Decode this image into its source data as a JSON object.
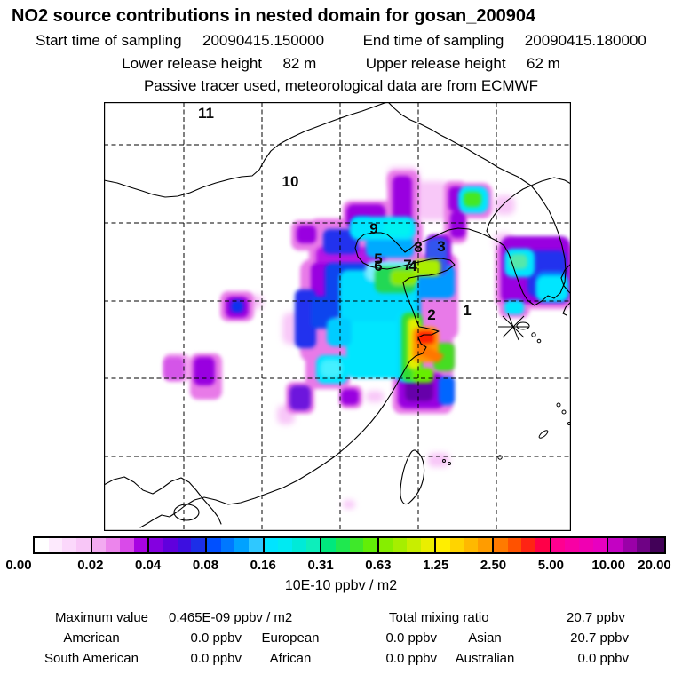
{
  "header": {
    "title": "NO2 source contributions in nested domain for gosan_200904",
    "start_label": "Start time of sampling",
    "start_value": "20090415.150000",
    "end_label": "End time of sampling",
    "end_value": "20090415.180000",
    "lower_label": "Lower release height",
    "lower_value": "82 m",
    "upper_label": "Upper release height",
    "upper_value": "62 m",
    "tracer_note": "Passive tracer used, meteorological data are from ECMWF"
  },
  "map": {
    "sites": [
      {
        "label": "1"
      },
      {
        "label": "2"
      },
      {
        "label": "3"
      },
      {
        "label": "4"
      },
      {
        "label": "5"
      },
      {
        "label": "6"
      },
      {
        "label": "7"
      },
      {
        "label": "8"
      },
      {
        "label": "9"
      },
      {
        "label": "10"
      },
      {
        "label": "11"
      }
    ],
    "marker_icon": "asterisk-star at receptor location"
  },
  "colorbar": {
    "ticks": [
      "0.00",
      "0.02",
      "0.04",
      "0.08",
      "0.16",
      "0.31",
      "0.63",
      "1.25",
      "2.50",
      "5.00",
      "10.00",
      "20.00"
    ],
    "unit": "10E-10 ppbv / m2",
    "segments": [
      [
        "#ffffff",
        "#fdeafd",
        "#fbd8fb",
        "#f8c6f7"
      ],
      [
        "#f3abf1",
        "#ec85ec",
        "#d94ae9",
        "#a703e2"
      ],
      [
        "#8400e0",
        "#6000dd",
        "#3d0fe0",
        "#1c2fe8"
      ],
      [
        "#0050ff",
        "#0078ff",
        "#00a2ff",
        "#2fc8ff"
      ],
      [
        "#00e4ff",
        "#00eaf2",
        "#00ead8",
        "#0deebb"
      ],
      [
        "#00e87d",
        "#1fe84f",
        "#3fe82a",
        "#62ee08"
      ],
      [
        "#86ee00",
        "#a6ee00",
        "#c8ee00",
        "#eaee00"
      ],
      [
        "#ffee00",
        "#ffd400",
        "#ffb900",
        "#ff9c00"
      ],
      [
        "#ff7a00",
        "#ff5200",
        "#ff2414",
        "#ff0048"
      ],
      [
        "#ff0090",
        "#f800a4",
        "#f000b2",
        "#e800c0"
      ],
      [
        "#c302c3",
        "#9a01a8",
        "#6f0285",
        "#420158"
      ]
    ]
  },
  "stats": {
    "max_label": "Maximum value",
    "max_value": "0.465E-09 ppbv / m2",
    "total_label": "Total mixing ratio",
    "total_value": "20.7 ppbv",
    "regions": [
      {
        "label": "American",
        "value": "0.0 ppbv"
      },
      {
        "label": "European",
        "value": "0.0 ppbv"
      },
      {
        "label": "Asian",
        "value": "20.7 ppbv"
      },
      {
        "label": "South American",
        "value": "0.0 ppbv"
      },
      {
        "label": "African",
        "value": "0.0 ppbv"
      },
      {
        "label": "Australian",
        "value": "0.0 ppbv"
      }
    ]
  },
  "chart_data": {
    "type": "heatmap",
    "title": "NO2 source contributions in nested domain for gosan_200904",
    "subtitle_lines": [
      "Start time of sampling 20090415.150000   End time of sampling 20090415.180000",
      "Lower release height 82 m   Upper release height 62 m",
      "Passive tracer used, meteorological data are from ECMWF"
    ],
    "colorbar_tick_values": [
      0.0,
      0.02,
      0.04,
      0.08,
      0.16,
      0.31,
      0.63,
      1.25,
      2.5,
      5.0,
      10.0,
      20.0
    ],
    "colorbar_unit": "10E-10 ppbv / m2",
    "scale": "logarithmic, factor-2 steps from 0.02 to 20",
    "legend_position": "bottom",
    "grid": "dashed lat/lon graticule over East Asia domain",
    "numbered_source_sites": [
      1,
      2,
      3,
      4,
      5,
      6,
      7,
      8,
      9,
      10,
      11
    ],
    "receptor_marker": "star (Gosan, Jeju)",
    "maximum_value": "0.465E-09 ppbv / m2",
    "total_mixing_ratio": "20.7 ppbv",
    "source_contributions_ppbv": {
      "American": 0.0,
      "European": 0.0,
      "Asian": 20.7,
      "South American": 0.0,
      "African": 0.0,
      "Australian": 0.0
    },
    "notable_features": [
      "large purple/blue/cyan plume over eastern China around sites 4-9",
      "green-yellow-orange-red maximum on coast near Shanghai south of site 2",
      "cyan/blue patch over southern Korea east of receptor star",
      "cyan blob with green core northeast of site 3",
      "scattered small magenta patches west and southwest of main plume"
    ]
  }
}
